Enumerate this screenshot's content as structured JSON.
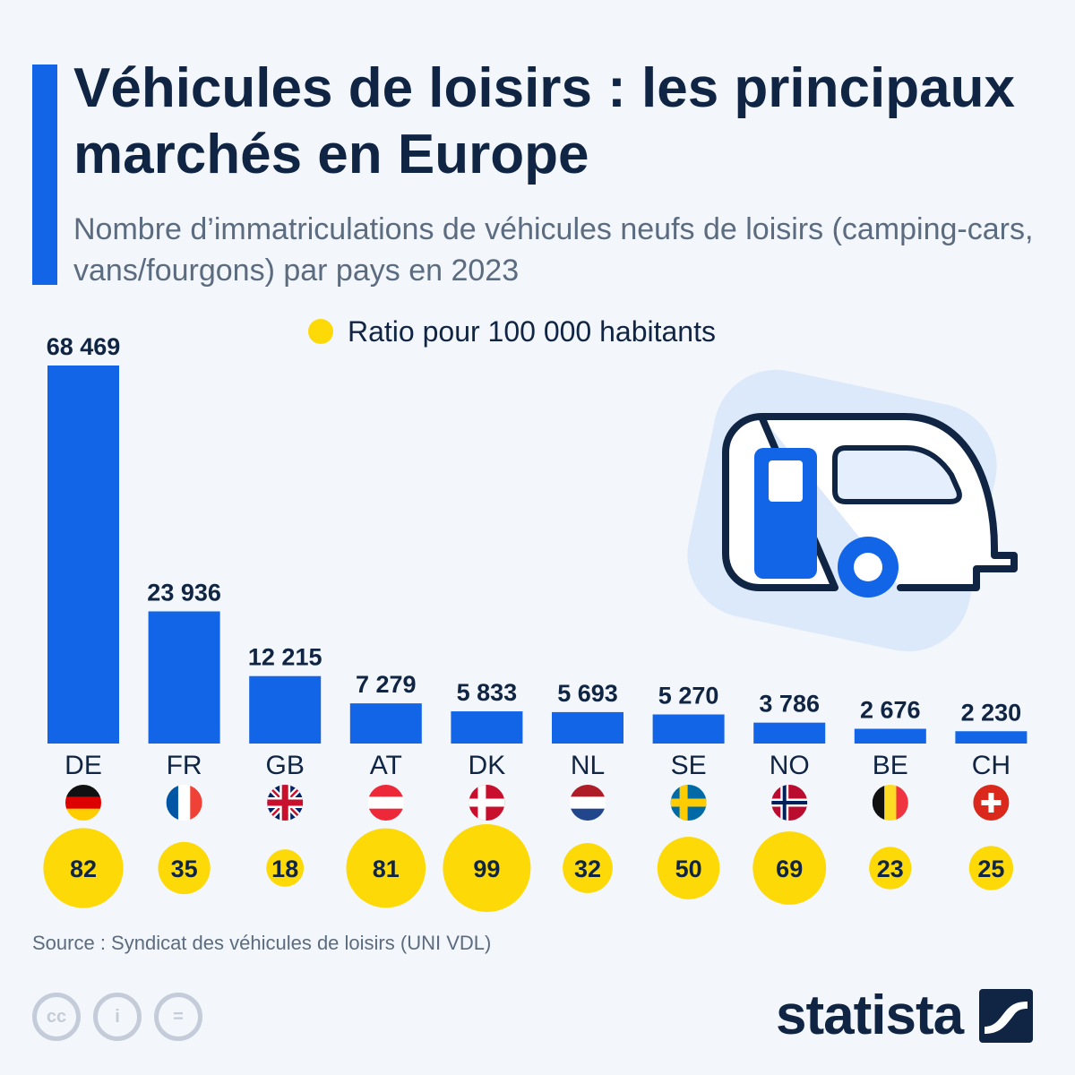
{
  "title": "Véhicules de loisirs : les principaux marchés en Europe",
  "subtitle": "Nombre d’immatriculations de véhicules neufs de loisirs (camping-cars, vans/fourgons) par pays en 2023",
  "legend_label": "Ratio pour 100 000 habitants",
  "colors": {
    "bar": "#1365e8",
    "ratio_bubble": "#fcd907",
    "text": "#102543"
  },
  "chart_data": {
    "type": "bar",
    "categories": [
      "DE",
      "FR",
      "GB",
      "AT",
      "DK",
      "NL",
      "SE",
      "NO",
      "BE",
      "CH"
    ],
    "series": [
      {
        "values": [
          68469,
          23936,
          12215,
          7279,
          5833,
          5693,
          5270,
          3786,
          2676,
          2230
        ]
      },
      {
        "name": "Ratio pour 100 000 habitants",
        "values": [
          82,
          35,
          18,
          81,
          99,
          32,
          50,
          69,
          23,
          25
        ]
      }
    ],
    "value_labels": [
      "68 469",
      "23 936",
      "12 215",
      "7 279",
      "5 833",
      "5 693",
      "5 270",
      "3 786",
      "2 676",
      "2 230"
    ],
    "flags": [
      "germany-flag",
      "france-flag",
      "uk-flag",
      "austria-flag",
      "denmark-flag",
      "netherlands-flag",
      "sweden-flag",
      "norway-flag",
      "belgium-flag",
      "switzerland-flag"
    ],
    "ylim": [
      0,
      68469
    ],
    "grid": false,
    "legend": "top-center"
  },
  "illustration": "caravan-icon",
  "source": "Source : Syndicat des véhicules de loisirs (UNI VDL)",
  "license_icons": [
    "cc-icon",
    "attribution-icon",
    "no-derivatives-icon"
  ],
  "license_glyphs": [
    "cc",
    "i",
    "="
  ],
  "brand": {
    "name": "statista",
    "logo": "statista-logo-icon"
  }
}
